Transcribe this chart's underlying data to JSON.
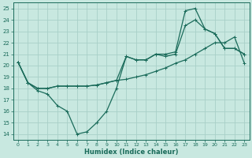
{
  "xlabel": "Humidex (Indice chaleur)",
  "bg_color": "#c8e8e0",
  "grid_color": "#b0d8d0",
  "line_color": "#1a6b5a",
  "xlim": [
    -0.5,
    23.5
  ],
  "ylim": [
    13.5,
    25.5
  ],
  "xticks": [
    0,
    1,
    2,
    3,
    4,
    5,
    6,
    7,
    8,
    9,
    10,
    11,
    12,
    13,
    14,
    15,
    16,
    17,
    18,
    19,
    20,
    21,
    22,
    23
  ],
  "yticks": [
    14,
    15,
    16,
    17,
    18,
    19,
    20,
    21,
    22,
    23,
    24,
    25
  ],
  "line1_x": [
    0,
    1,
    2,
    3,
    4,
    5,
    6,
    7,
    8,
    9,
    10,
    11,
    12,
    13,
    14,
    15,
    16,
    17,
    18,
    19,
    20,
    21,
    22,
    23
  ],
  "line1_y": [
    20.3,
    18.5,
    17.8,
    17.5,
    16.5,
    16.0,
    14.0,
    14.2,
    15.0,
    16.0,
    18.0,
    20.8,
    20.5,
    20.5,
    21.0,
    21.0,
    21.2,
    24.8,
    25.0,
    23.2,
    22.8,
    21.5,
    21.5,
    21.0
  ],
  "line2_x": [
    0,
    1,
    2,
    3,
    4,
    5,
    6,
    7,
    8,
    9,
    10,
    11,
    12,
    13,
    14,
    15,
    16,
    17,
    18,
    19,
    20,
    21,
    22,
    23
  ],
  "line2_y": [
    20.3,
    18.5,
    18.0,
    18.0,
    18.2,
    18.2,
    18.2,
    18.2,
    18.3,
    18.5,
    18.7,
    18.8,
    19.0,
    19.2,
    19.5,
    19.8,
    20.2,
    20.5,
    21.0,
    21.5,
    22.0,
    22.0,
    22.5,
    20.2
  ],
  "line3_x": [
    0,
    1,
    2,
    3,
    4,
    5,
    6,
    7,
    8,
    9,
    10,
    11,
    12,
    13,
    14,
    15,
    16,
    17,
    18,
    19,
    20,
    21,
    22,
    23
  ],
  "line3_y": [
    20.3,
    18.5,
    18.0,
    18.0,
    18.2,
    18.2,
    18.2,
    18.2,
    18.3,
    18.5,
    18.7,
    20.8,
    20.5,
    20.5,
    21.0,
    20.8,
    21.0,
    23.5,
    24.0,
    23.2,
    22.8,
    21.5,
    21.5,
    21.0
  ]
}
